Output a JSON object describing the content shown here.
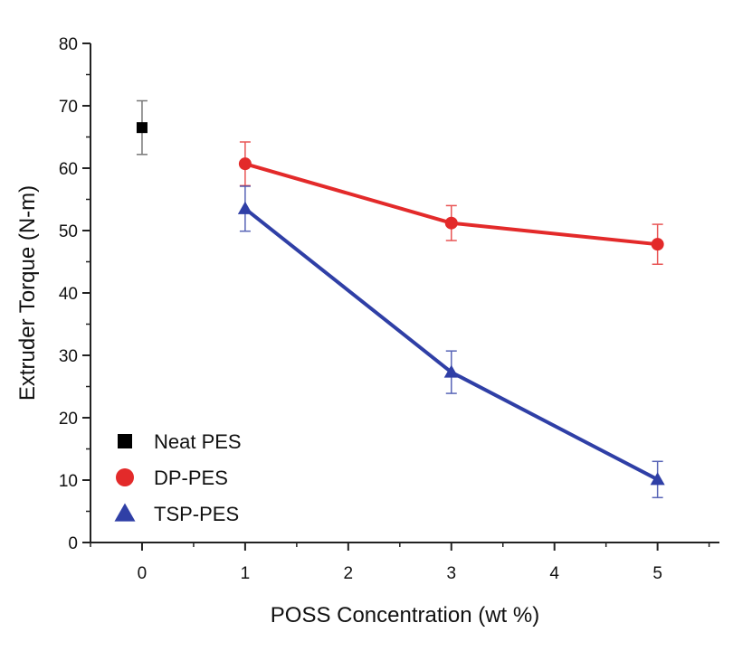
{
  "chart_data": {
    "type": "line",
    "title": "",
    "xlabel": "POSS Concentration (wt %)",
    "ylabel": "Extruder Torque (N-m)",
    "xlim": [
      -0.5,
      5.6
    ],
    "ylim": [
      0,
      80
    ],
    "xticks": [
      0,
      1,
      2,
      3,
      4,
      5
    ],
    "xtick_labels": [
      "0",
      "1",
      "2",
      "3",
      "4",
      "5"
    ],
    "yticks": [
      0,
      10,
      20,
      30,
      40,
      50,
      60,
      70,
      80
    ],
    "ytick_labels": [
      "0",
      "10",
      "20",
      "30",
      "40",
      "50",
      "60",
      "70",
      "80"
    ],
    "grid": false,
    "legend_position": "bottom-left",
    "series": [
      {
        "name": "Neat PES",
        "marker": "square",
        "color": "#000000",
        "connected": false,
        "x": [
          0
        ],
        "y": [
          66.5
        ],
        "error": [
          4.3
        ]
      },
      {
        "name": "DP-PES",
        "marker": "circle",
        "color": "#e32a2a",
        "connected": true,
        "x": [
          1,
          3,
          5
        ],
        "y": [
          60.7,
          51.2,
          47.8
        ],
        "error": [
          3.5,
          2.8,
          3.2
        ]
      },
      {
        "name": "TSP-PES",
        "marker": "triangle",
        "color": "#2f3fa6",
        "connected": true,
        "x": [
          1,
          3,
          5
        ],
        "y": [
          53.5,
          27.3,
          10.1
        ],
        "error": [
          3.6,
          3.4,
          2.9
        ]
      }
    ]
  }
}
